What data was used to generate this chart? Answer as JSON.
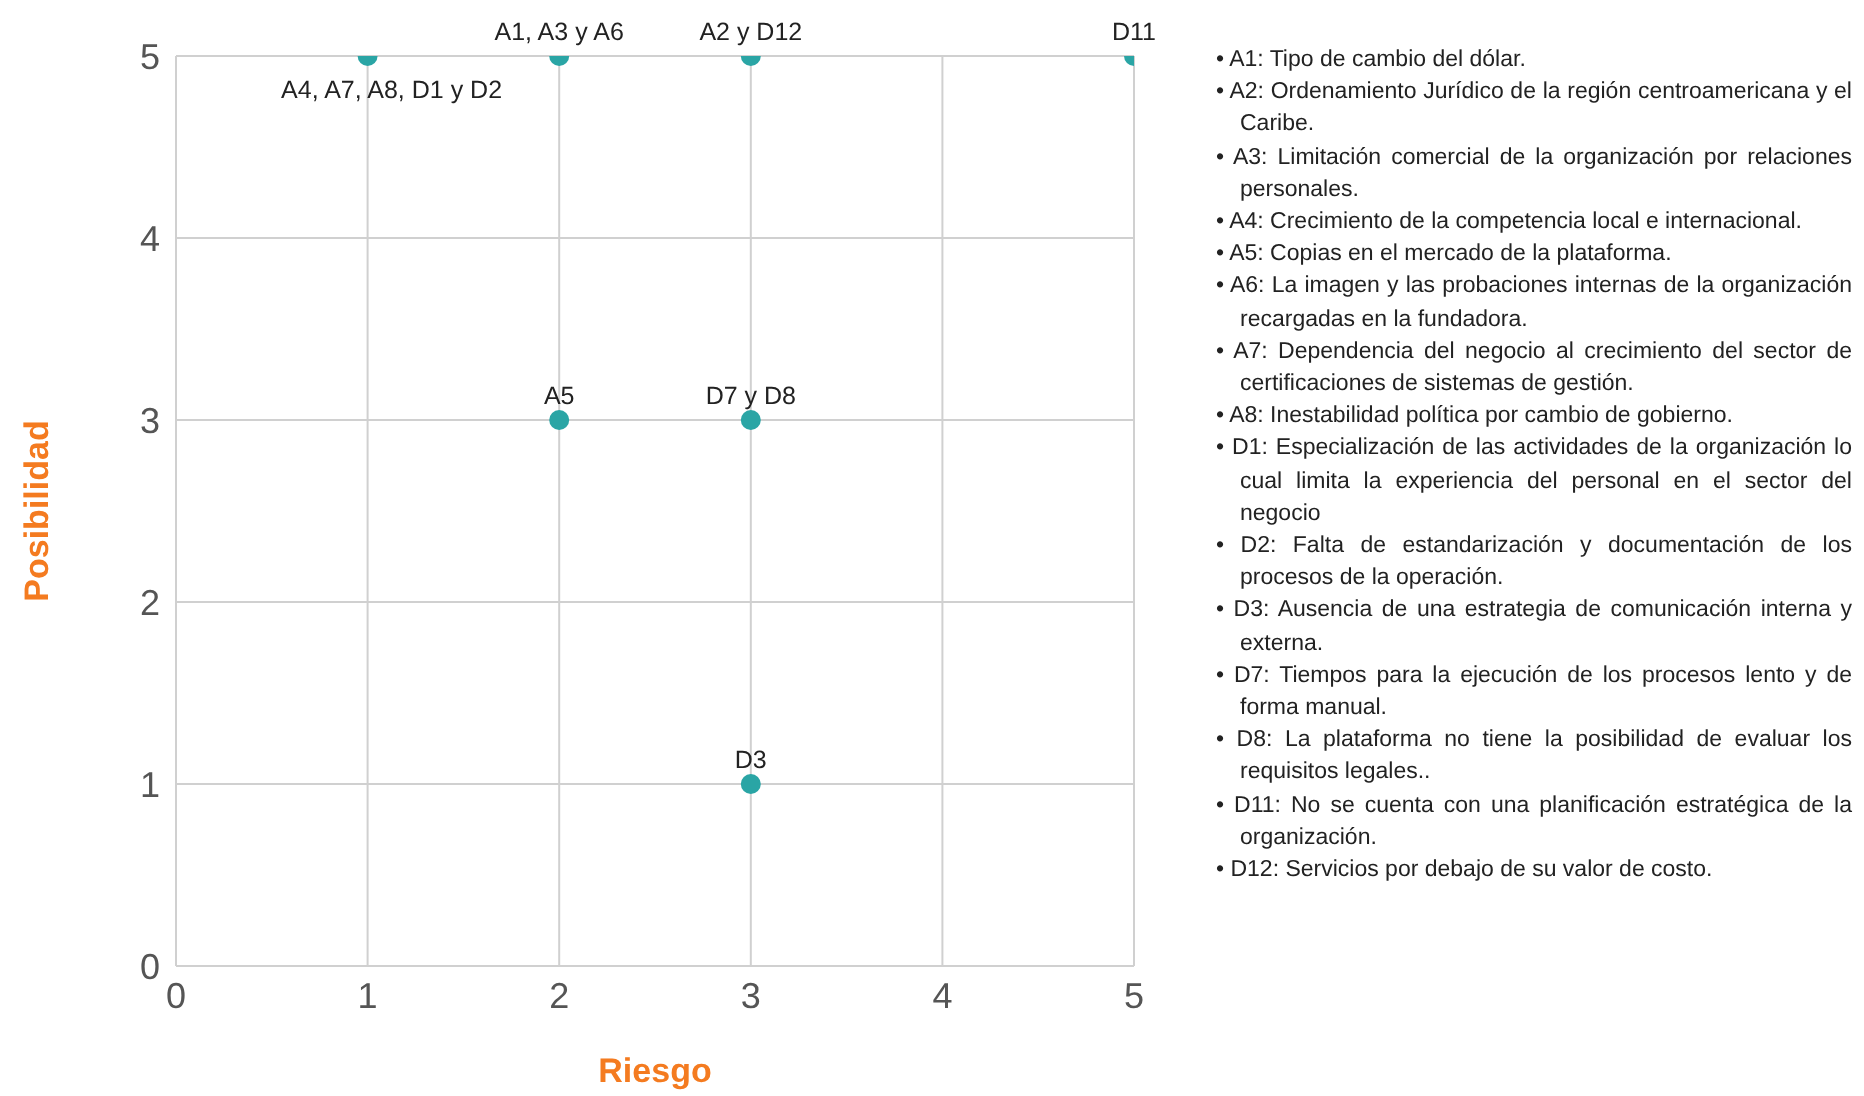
{
  "chart_data": {
    "type": "scatter",
    "xlabel": "Riesgo",
    "ylabel": "Posibilidad",
    "x": [
      1,
      2,
      3,
      5,
      2,
      3,
      3
    ],
    "series": [
      {
        "color": "#2aa5a5",
        "values": [
          5,
          5,
          5,
          5,
          3,
          3,
          1
        ]
      }
    ],
    "xlim": [
      0,
      5
    ],
    "ylim": [
      0,
      5
    ],
    "xticks": [
      0,
      1,
      2,
      3,
      4,
      5
    ],
    "yticks": [
      0,
      1,
      2,
      3,
      4,
      5
    ],
    "grid": true,
    "marker": "circle",
    "annotations": [
      {
        "text": "A1, A3 y A6",
        "x": 2,
        "y": 5
      },
      {
        "text": "A4, A7, A8, D1 y D2",
        "x": 1,
        "y": 5
      },
      {
        "text": "A2 y D12",
        "x": 3,
        "y": 5
      },
      {
        "text": "D11",
        "x": 5,
        "y": 5
      },
      {
        "text": "A5",
        "x": 2,
        "y": 3
      },
      {
        "text": "D7 y D8",
        "x": 3,
        "y": 3
      },
      {
        "text": "D3",
        "x": 3,
        "y": 1
      },
      "• A1: Tipo de cambio del dólar.",
      "• A2: Ordenamiento Jurídico de la región centroamericana y el Caribe.",
      "• A3: Limitación comercial de la organización por relaciones personales.",
      "• A4: Crecimiento de la competencia local e internacional.",
      "• A5: Copias en el mercado de la plataforma.",
      "• A6: La imagen y las probaciones internas de la organización recargadas en la fundadora.",
      "• A7: Dependencia del negocio al crecimiento del sector de certificaciones de sistemas de gestión.",
      "• A8: Inestabilidad política por cambio de gobierno.",
      "• D1: Especialización de las actividades de la organización lo cual limita la experiencia del personal en el sector del negocio",
      "• D2: Falta de estandarización y documentación de los procesos de la operación.",
      "• D3: Ausencia de una estrategia de comunicación interna y externa.",
      "• D7: Tiempos para la ejecución de los procesos lento y de forma manual.",
      "• D8: La plataforma no tiene la posibilidad de evaluar los requisitos legales..",
      "• D11: No se cuenta con una planificación estratégica de la organización.",
      "• D12: Servicios por debajo de su valor de costo."
    ]
  }
}
